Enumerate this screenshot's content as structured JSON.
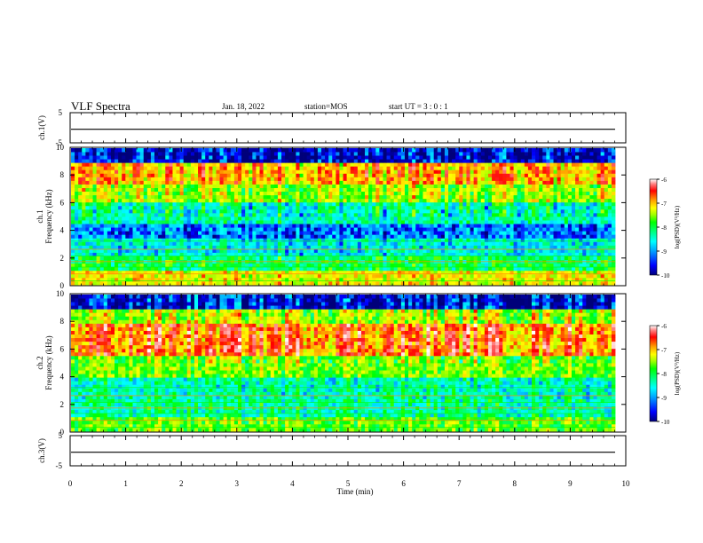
{
  "header": {
    "title": "VLF Spectra",
    "date": "Jan. 18, 2022",
    "station": "station=MOS",
    "start_ut": "start UT = 3 : 0 : 1"
  },
  "chart_data": [
    {
      "type": "line",
      "name": "ch1-waveform-panel",
      "ylabel": "ch.1(V)",
      "ylim": [
        -5,
        5
      ],
      "yticks": [
        "5",
        "-5"
      ],
      "x": [
        0,
        10
      ],
      "series": [
        {
          "values": [
            -0.5,
            -0.5
          ]
        }
      ]
    },
    {
      "type": "heatmap",
      "name": "ch1-spectrogram",
      "ylabel": "ch.1\nFrequency (kHz)",
      "ylim": [
        0,
        10
      ],
      "yticks": [
        "0",
        "2",
        "4",
        "6",
        "8",
        "10"
      ],
      "xlim": [
        0,
        10
      ],
      "colorbar": {
        "label": "log(PSD)(V²/Hz)",
        "range": [
          -10,
          -6
        ],
        "ticks": [
          "-6",
          "-7",
          "-8",
          "-9",
          "-10"
        ]
      },
      "bands_kHz_intensity": [
        [
          0,
          1,
          -7.5
        ],
        [
          1,
          2,
          -8.4
        ],
        [
          2,
          3.5,
          -8.9
        ],
        [
          3.5,
          4.5,
          -9.4
        ],
        [
          4.5,
          6,
          -8.7
        ],
        [
          6,
          7.5,
          -7.8
        ],
        [
          7.5,
          9,
          -7.2
        ],
        [
          9,
          10,
          -9.8
        ]
      ]
    },
    {
      "type": "heatmap",
      "name": "ch2-spectrogram",
      "ylabel": "ch.2\nFrequency (kHz)",
      "ylim": [
        0,
        10
      ],
      "yticks": [
        "0",
        "2",
        "4",
        "6",
        "8",
        "10"
      ],
      "xlim": [
        0,
        10
      ],
      "colorbar": {
        "label": "log(PSD)(V²/Hz)",
        "range": [
          -10,
          -6
        ],
        "ticks": [
          "-6",
          "-7",
          "-8",
          "-9",
          "-10"
        ]
      },
      "bands_kHz_intensity": [
        [
          0,
          1,
          -8.0
        ],
        [
          1,
          2.5,
          -8.6
        ],
        [
          2.5,
          4,
          -8.7
        ],
        [
          4,
          5.5,
          -7.9
        ],
        [
          5.5,
          8,
          -6.9
        ],
        [
          8,
          9,
          -7.7
        ],
        [
          9,
          10,
          -9.7
        ]
      ]
    },
    {
      "type": "line",
      "name": "ch3-waveform-panel",
      "ylabel": "ch.3(V)",
      "ylim": [
        -5,
        5
      ],
      "yticks": [
        "5",
        "-5"
      ],
      "x": [
        0,
        10
      ],
      "series": [
        {
          "values": [
            -0.5,
            -0.5
          ]
        }
      ]
    }
  ],
  "xaxis": {
    "label": "Time (min)",
    "ticks": [
      "0",
      "1",
      "2",
      "3",
      "4",
      "5",
      "6",
      "7",
      "8",
      "9",
      "10"
    ]
  },
  "colors": {
    "palette": [
      "#00007a",
      "#0000ff",
      "#00a0ff",
      "#00ffff",
      "#00ff80",
      "#00ff00",
      "#a0ff00",
      "#ffff00",
      "#ffa000",
      "#ff0000",
      "#ff8080",
      "#ffffff"
    ]
  }
}
